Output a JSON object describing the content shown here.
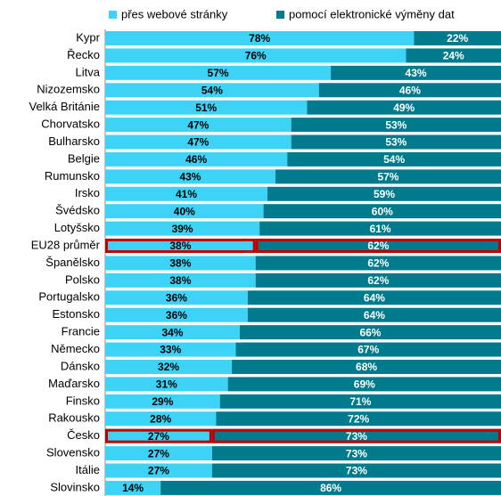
{
  "chart_data": {
    "type": "stacked-bar-horizontal",
    "categories": [
      "Kypr",
      "Řecko",
      "Litva",
      "Nizozemsko",
      "Velká Británie",
      "Chorvatsko",
      "Bulharsko",
      "Belgie",
      "Rumunsko",
      "Irsko",
      "Švédsko",
      "Lotyšsko",
      "EU28 průměr",
      "Španělsko",
      "Polsko",
      "Portugalsko",
      "Estonsko",
      "Francie",
      "Německo",
      "Dánsko",
      "Maďarsko",
      "Finsko",
      "Rakousko",
      "Česko",
      "Slovensko",
      "Itálie",
      "Slovinsko"
    ],
    "series": [
      {
        "name": "přes webové stránky",
        "color": "#3dd3f7",
        "label_color": "#000000",
        "values": [
          78,
          76,
          57,
          54,
          51,
          47,
          47,
          46,
          43,
          41,
          40,
          39,
          38,
          38,
          38,
          36,
          36,
          34,
          33,
          32,
          31,
          29,
          28,
          27,
          27,
          27,
          14
        ],
        "value_labels": [
          "78%",
          "76%",
          "57%",
          "54%",
          "51%",
          "47%",
          "47%",
          "46%",
          "43%",
          "41%",
          "40%",
          "39%",
          "38%",
          "38%",
          "38%",
          "36%",
          "36%",
          "34%",
          "33%",
          "32%",
          "31%",
          "29%",
          "28%",
          "27%",
          "27%",
          "27%",
          "14%"
        ]
      },
      {
        "name": "pomocí elektronické výměny dat",
        "color": "#007b8d",
        "label_color": "#ffffff",
        "values": [
          22,
          24,
          43,
          46,
          49,
          53,
          53,
          54,
          57,
          59,
          60,
          61,
          62,
          62,
          62,
          64,
          64,
          66,
          67,
          68,
          69,
          71,
          72,
          73,
          73,
          73,
          86
        ],
        "value_labels": [
          "22%",
          "24%",
          "43%",
          "46%",
          "49%",
          "53%",
          "53%",
          "54%",
          "57%",
          "59%",
          "60%",
          "61%",
          "62%",
          "62%",
          "62%",
          "64%",
          "64%",
          "66%",
          "67%",
          "68%",
          "69%",
          "71%",
          "72%",
          "73%",
          "73%",
          "73%",
          "86%"
        ]
      }
    ],
    "xlim": [
      0,
      100
    ],
    "highlight_categories": [
      12,
      23
    ],
    "highlight_color": "#c00000",
    "legend": "top"
  }
}
